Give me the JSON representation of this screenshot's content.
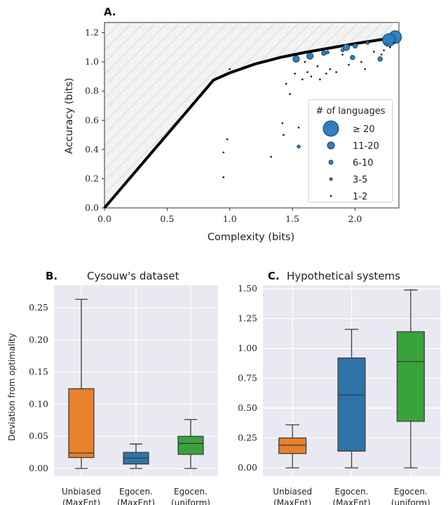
{
  "colors": {
    "scatter_fill": "#2f7fc1",
    "scatter_edge": "#1a3f63",
    "bound": "#000000",
    "hatch_bg": "#f2f2f2",
    "hatch_line": "#c9c9c9",
    "panel_bg": "#e9e9f1",
    "grid": "#ffffff",
    "orange": "#e8812a",
    "blue": "#2f74a8",
    "green": "#3aa23a"
  },
  "chart_data": [
    {
      "id": "A",
      "type": "scatter",
      "panel_letter": "A.",
      "title": "",
      "xlabel": "Complexity (bits)",
      "ylabel": "Accuracy (bits)",
      "xlim": [
        0.0,
        2.35
      ],
      "ylim": [
        0.0,
        1.27
      ],
      "xticks": [
        "0.0",
        "0.5",
        "1.0",
        "1.5",
        "2.0"
      ],
      "xtick_values": [
        0.0,
        0.5,
        1.0,
        1.5,
        2.0
      ],
      "yticks": [
        "0.0",
        "0.2",
        "0.4",
        "0.6",
        "0.8",
        "1.0",
        "1.2"
      ],
      "ytick_values": [
        0.0,
        0.2,
        0.4,
        0.6,
        0.8,
        1.0,
        1.2
      ],
      "grid": false,
      "bound_curve": {
        "x": [
          0.0,
          0.87,
          1.0,
          1.2,
          1.4,
          1.6,
          1.8,
          2.0,
          2.15,
          2.3
        ],
        "y": [
          0.0,
          0.875,
          0.925,
          0.985,
          1.03,
          1.065,
          1.095,
          1.125,
          1.145,
          1.165
        ]
      },
      "legend": {
        "title": "# of languages",
        "placement": "right",
        "entries": [
          {
            "label": "≥ 20",
            "size_level": 5
          },
          {
            "label": "11-20",
            "size_level": 4
          },
          {
            "label": "6-10",
            "size_level": 3
          },
          {
            "label": "3-5",
            "size_level": 2
          },
          {
            "label": "1-2",
            "size_level": 1
          }
        ]
      },
      "points": [
        {
          "x": 2.32,
          "y": 1.17,
          "level": 5
        },
        {
          "x": 2.27,
          "y": 1.15,
          "level": 5
        },
        {
          "x": 1.53,
          "y": 1.02,
          "level": 4
        },
        {
          "x": 1.64,
          "y": 1.04,
          "level": 4
        },
        {
          "x": 1.93,
          "y": 1.1,
          "level": 4
        },
        {
          "x": 1.75,
          "y": 1.06,
          "level": 3
        },
        {
          "x": 2.0,
          "y": 1.11,
          "level": 3
        },
        {
          "x": 1.98,
          "y": 1.03,
          "level": 3
        },
        {
          "x": 2.2,
          "y": 1.02,
          "level": 3
        },
        {
          "x": 1.78,
          "y": 1.065,
          "level": 2
        },
        {
          "x": 1.9,
          "y": 1.08,
          "level": 2
        },
        {
          "x": 2.1,
          "y": 1.13,
          "level": 2
        },
        {
          "x": 2.25,
          "y": 1.12,
          "level": 2
        },
        {
          "x": 1.55,
          "y": 0.42,
          "level": 2
        },
        {
          "x": 1.6,
          "y": 1.0,
          "level": 1
        },
        {
          "x": 1.7,
          "y": 0.97,
          "level": 1
        },
        {
          "x": 1.62,
          "y": 0.93,
          "level": 1
        },
        {
          "x": 1.52,
          "y": 0.92,
          "level": 1
        },
        {
          "x": 1.58,
          "y": 0.88,
          "level": 1
        },
        {
          "x": 1.65,
          "y": 0.9,
          "level": 1
        },
        {
          "x": 1.8,
          "y": 0.95,
          "level": 1
        },
        {
          "x": 1.85,
          "y": 0.93,
          "level": 1
        },
        {
          "x": 1.9,
          "y": 1.05,
          "level": 1
        },
        {
          "x": 1.95,
          "y": 0.98,
          "level": 1
        },
        {
          "x": 2.05,
          "y": 1.0,
          "level": 1
        },
        {
          "x": 2.15,
          "y": 1.07,
          "level": 1
        },
        {
          "x": 2.23,
          "y": 1.08,
          "level": 1
        },
        {
          "x": 2.28,
          "y": 1.1,
          "level": 1
        },
        {
          "x": 2.31,
          "y": 1.13,
          "level": 1
        },
        {
          "x": 1.45,
          "y": 0.85,
          "level": 1
        },
        {
          "x": 1.48,
          "y": 0.78,
          "level": 1
        },
        {
          "x": 1.72,
          "y": 0.88,
          "level": 1
        },
        {
          "x": 1.77,
          "y": 0.92,
          "level": 1
        },
        {
          "x": 1.7,
          "y": 0.6,
          "level": 1
        },
        {
          "x": 1.55,
          "y": 0.55,
          "level": 1
        },
        {
          "x": 1.42,
          "y": 0.58,
          "level": 1
        },
        {
          "x": 1.43,
          "y": 0.5,
          "level": 1
        },
        {
          "x": 1.33,
          "y": 0.35,
          "level": 1
        },
        {
          "x": 0.95,
          "y": 0.21,
          "level": 1
        },
        {
          "x": 0.95,
          "y": 0.38,
          "level": 1
        },
        {
          "x": 0.98,
          "y": 0.47,
          "level": 1
        },
        {
          "x": 1.0,
          "y": 0.95,
          "level": 1
        },
        {
          "x": 2.08,
          "y": 0.95,
          "level": 1
        },
        {
          "x": 2.21,
          "y": 1.05,
          "level": 1
        }
      ]
    },
    {
      "id": "B",
      "type": "box",
      "panel_letter": "B.",
      "title": "Cysouw's dataset",
      "xlabel": "",
      "ylabel": "Deviation from optimality",
      "ylim": [
        -0.012,
        0.285
      ],
      "yticks": [
        "0.00",
        "0.05",
        "0.10",
        "0.15",
        "0.20",
        "0.25"
      ],
      "ytick_values": [
        0.0,
        0.05,
        0.1,
        0.15,
        0.2,
        0.25
      ],
      "grid": true,
      "categories": [
        [
          "Unbiased",
          "(MaxEnt)"
        ],
        [
          "Egocen.",
          "(MaxEnt)"
        ],
        [
          "Egocen.",
          "(uniform)"
        ]
      ],
      "boxes": [
        {
          "min": 0.0,
          "q1": 0.017,
          "median": 0.024,
          "q3": 0.124,
          "max": 0.263,
          "color": "orange"
        },
        {
          "min": 0.0,
          "q1": 0.007,
          "median": 0.016,
          "q3": 0.025,
          "max": 0.038,
          "color": "blue"
        },
        {
          "min": 0.0,
          "q1": 0.022,
          "median": 0.039,
          "q3": 0.05,
          "max": 0.076,
          "color": "green"
        }
      ]
    },
    {
      "id": "C",
      "type": "box",
      "panel_letter": "C.",
      "title": "Hypothetical systems",
      "xlabel": "",
      "ylabel": "",
      "ylim": [
        -0.07,
        1.53
      ],
      "yticks": [
        "0.00",
        "0.25",
        "0.50",
        "0.75",
        "1.00",
        "1.25",
        "1.50"
      ],
      "ytick_values": [
        0.0,
        0.25,
        0.5,
        0.75,
        1.0,
        1.25,
        1.5
      ],
      "grid": true,
      "categories": [
        [
          "Unbiased",
          "(MaxEnt)"
        ],
        [
          "Egocen.",
          "(MaxEnt)"
        ],
        [
          "Egocen.",
          "(uniform)"
        ]
      ],
      "boxes": [
        {
          "min": 0.0,
          "q1": 0.12,
          "median": 0.19,
          "q3": 0.25,
          "max": 0.36,
          "color": "orange"
        },
        {
          "min": 0.0,
          "q1": 0.14,
          "median": 0.61,
          "q3": 0.92,
          "max": 1.16,
          "color": "blue"
        },
        {
          "min": 0.0,
          "q1": 0.39,
          "median": 0.89,
          "q3": 1.14,
          "max": 1.49,
          "color": "green"
        }
      ]
    }
  ]
}
